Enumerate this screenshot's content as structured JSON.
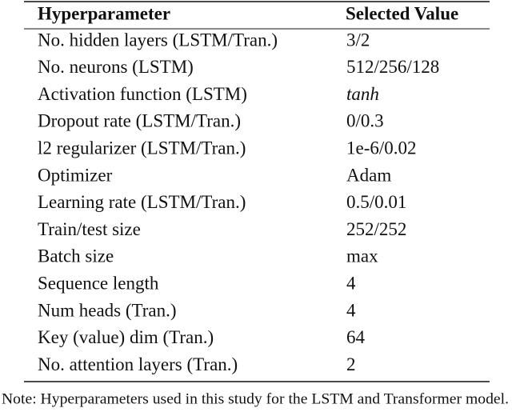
{
  "table": {
    "header": [
      "Hyperparameter",
      "Selected Value"
    ],
    "rows": [
      [
        "No. hidden layers (LSTM/Tran.)",
        "3/2"
      ],
      [
        "No. neurons (LSTM)",
        "512/256/128"
      ],
      [
        "Activation function (LSTM)",
        "tanh"
      ],
      [
        "Dropout rate (LSTM/Tran.)",
        "0/0.3"
      ],
      [
        "l2 regularizer (LSTM/Tran.)",
        "1e-6/0.02"
      ],
      [
        "Optimizer",
        "Adam"
      ],
      [
        "Learning rate (LSTM/Tran.)",
        "0.5/0.01"
      ],
      [
        "Train/test size",
        "252/252"
      ],
      [
        "Batch size",
        "max"
      ],
      [
        "Sequence length",
        "4"
      ],
      [
        "Num heads (Tran.)",
        "4"
      ],
      [
        "Key (value) dim (Tran.)",
        "64"
      ],
      [
        "No. attention layers (Tran.)",
        "2"
      ]
    ]
  },
  "note": "Note: Hyperparameters used in this study for the LSTM and Transformer model."
}
